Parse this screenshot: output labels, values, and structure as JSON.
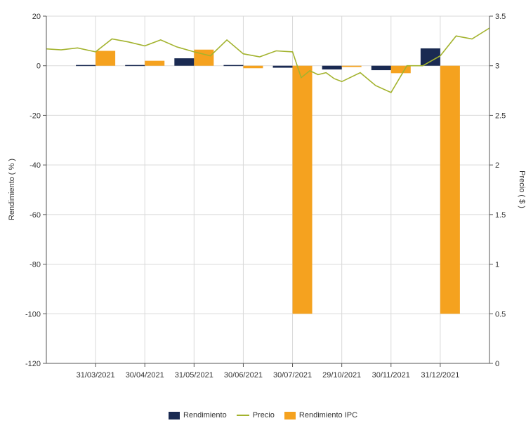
{
  "chart_data": {
    "type": "bar",
    "title": "",
    "ylabel": "Rendimiento  ( % )",
    "y2label": "Precio  ( $ )",
    "ylim": [
      -120,
      20
    ],
    "y2lim": [
      0,
      3.5
    ],
    "yticks": [
      "20",
      "0",
      "-20",
      "-40",
      "-60",
      "-80",
      "-100",
      "-120"
    ],
    "y2ticks": [
      "3.5",
      "3",
      "2.5",
      "2",
      "1.5",
      "1",
      "0.5",
      "0"
    ],
    "categories": [
      "31/03/2021",
      "30/04/2021",
      "31/05/2021",
      "30/06/2021",
      "30/07/2021",
      "29/10/2021",
      "30/11/2021",
      "31/12/2021"
    ],
    "grid": true,
    "legend_position": "bottom",
    "series": [
      {
        "name": "Rendimiento",
        "kind": "bar",
        "color": "#1a2a52",
        "values": [
          0.3,
          0.3,
          3.0,
          0.3,
          -0.8,
          -1.5,
          -1.8,
          7.0
        ]
      },
      {
        "name": "Rendimiento IPC",
        "kind": "bar",
        "color": "#f5a21f",
        "values": [
          6.0,
          2.0,
          6.5,
          -1.0,
          -100,
          -0.5,
          -3.0,
          -100
        ]
      },
      {
        "name": "Precio",
        "kind": "line",
        "axis": "right",
        "color": "#a3b32e",
        "x": [
          "01/03/2021",
          "10/03/2021",
          "20/03/2021",
          "31/03/2021",
          "10/04/2021",
          "20/04/2021",
          "30/04/2021",
          "10/05/2021",
          "20/05/2021",
          "31/05/2021",
          "10/06/2021",
          "20/06/2021",
          "30/06/2021",
          "10/07/2021",
          "20/07/2021",
          "30/07/2021",
          "15/08/2021",
          "31/08/2021",
          "15/09/2021",
          "30/09/2021",
          "15/10/2021",
          "29/10/2021",
          "10/11/2021",
          "20/11/2021",
          "30/11/2021",
          "10/12/2021",
          "20/12/2021",
          "31/12/2021",
          "10/01/2022",
          "20/01/2022",
          "31/01/2022"
        ],
        "values": [
          3.17,
          3.16,
          3.18,
          3.14,
          3.27,
          3.24,
          3.2,
          3.26,
          3.19,
          3.14,
          3.1,
          3.26,
          3.12,
          3.09,
          3.15,
          3.14,
          2.88,
          2.95,
          2.91,
          2.93,
          2.87,
          2.84,
          2.93,
          2.8,
          2.73,
          3.0,
          3.0,
          3.1,
          3.3,
          3.27,
          3.38
        ]
      }
    ]
  },
  "legend": {
    "rendimiento": "Rendimiento",
    "precio": "Precio",
    "rendimiento_ipc": "Rendimiento IPC"
  }
}
